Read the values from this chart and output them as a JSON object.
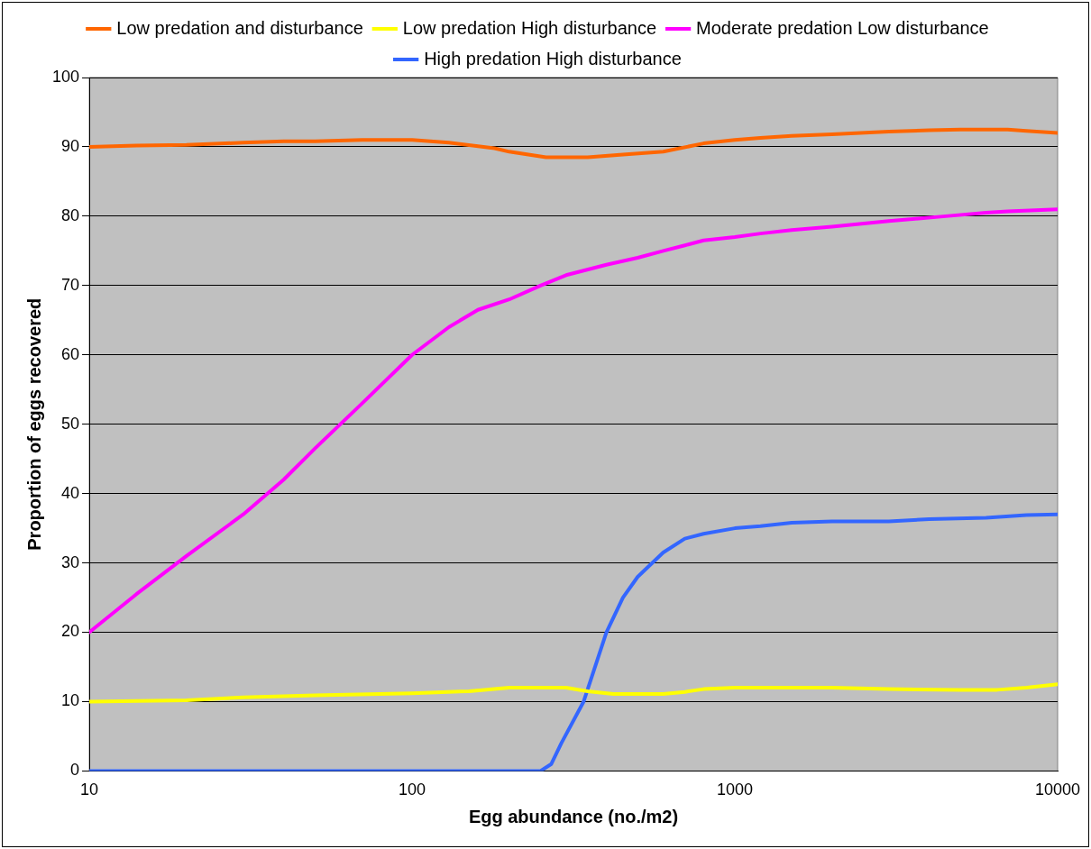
{
  "chart_data": {
    "type": "line",
    "xlabel": "Egg abundance (no./m2)",
    "ylabel": "Proportion of eggs recovered",
    "log": "x",
    "xlim": [
      10,
      10000
    ],
    "xticks": [
      10,
      100,
      1000,
      10000
    ],
    "ylim": [
      0,
      100
    ],
    "yticks": [
      0,
      10,
      20,
      30,
      40,
      50,
      60,
      70,
      80,
      90,
      100
    ],
    "grid": "y",
    "legend": "top",
    "marker": "none",
    "line_style": "solid",
    "series": [
      {
        "name": "Low predation and disturbance",
        "color": "#ff6600",
        "x": [
          10,
          14,
          20,
          30,
          40,
          50,
          70,
          100,
          130,
          180,
          200,
          260,
          350,
          450,
          600,
          800,
          1000,
          1200,
          1500,
          2000,
          3000,
          4000,
          5000,
          7000,
          8000,
          10000
        ],
        "values": [
          90,
          90.2,
          90.3,
          90.6,
          90.8,
          90.8,
          91,
          91,
          90.6,
          89.8,
          89.3,
          88.5,
          88.5,
          88.9,
          89.3,
          90.5,
          91,
          91.3,
          91.6,
          91.8,
          92.2,
          92.4,
          92.5,
          92.5,
          92.3,
          92
        ]
      },
      {
        "name": "Low predation High disturbance",
        "color": "#ffff00",
        "x": [
          10,
          20,
          30,
          50,
          100,
          150,
          200,
          300,
          350,
          420,
          600,
          700,
          800,
          1000,
          2000,
          3000,
          5000,
          6500,
          8000,
          10000
        ],
        "values": [
          10,
          10.2,
          10.6,
          10.9,
          11.2,
          11.5,
          12,
          12,
          11.5,
          11.1,
          11.1,
          11.4,
          11.8,
          12,
          12,
          11.8,
          11.7,
          11.7,
          12,
          12.5
        ]
      },
      {
        "name": "Moderate predation Low disturbance",
        "color": "#ff00ff",
        "x": [
          10,
          14,
          20,
          30,
          40,
          50,
          70,
          100,
          130,
          160,
          200,
          250,
          300,
          400,
          500,
          600,
          700,
          800,
          1000,
          1200,
          1500,
          2000,
          3000,
          4500,
          6000,
          7000,
          10000
        ],
        "values": [
          20,
          25.5,
          31,
          37,
          42,
          46.5,
          53,
          60,
          64,
          66.5,
          68,
          70,
          71.5,
          73,
          74,
          75,
          75.8,
          76.5,
          77,
          77.5,
          78,
          78.5,
          79.3,
          80,
          80.5,
          80.7,
          81
        ]
      },
      {
        "name": "High predation High disturbance",
        "color": "#3366ff",
        "x": [
          10,
          100,
          250,
          270,
          290,
          340,
          400,
          450,
          500,
          600,
          700,
          800,
          1000,
          1200,
          1500,
          2000,
          3000,
          4000,
          6000,
          8000,
          10000
        ],
        "values": [
          0,
          0,
          0,
          1,
          4,
          10,
          20,
          25,
          28,
          31.5,
          33.5,
          34.2,
          35,
          35.3,
          35.8,
          36,
          36,
          36.3,
          36.5,
          36.9,
          37
        ]
      }
    ]
  }
}
